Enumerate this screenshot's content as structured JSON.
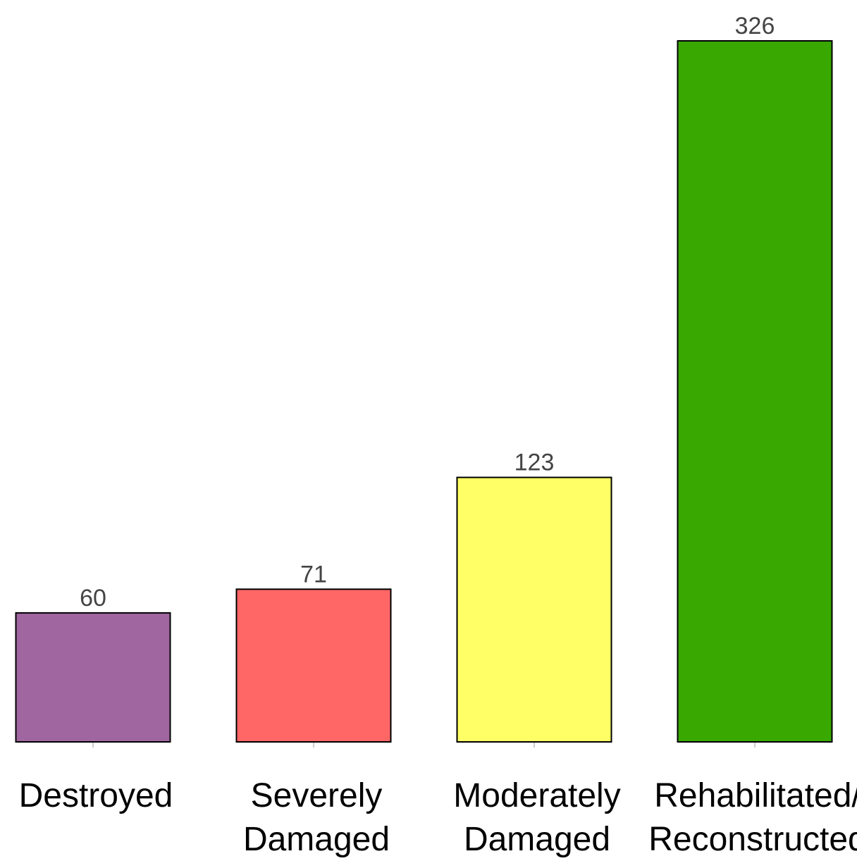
{
  "chart_data": {
    "type": "bar",
    "categories": [
      [
        "Destroyed"
      ],
      [
        "Severely",
        "Damaged"
      ],
      [
        "Moderately",
        "Damaged"
      ],
      [
        "Rehabilitated/",
        "Reconstructed"
      ]
    ],
    "values": [
      60,
      71,
      123,
      326
    ],
    "data_labels": [
      "60",
      "71",
      "123",
      "326"
    ],
    "colors": [
      "#A066A0",
      "#FF6666",
      "#FFFF66",
      "#39A800"
    ],
    "bar_outline_color": "#000000",
    "ylim": [
      0,
      326
    ],
    "grid": false,
    "legend": "none",
    "title": "",
    "xlabel": "",
    "ylabel": ""
  }
}
